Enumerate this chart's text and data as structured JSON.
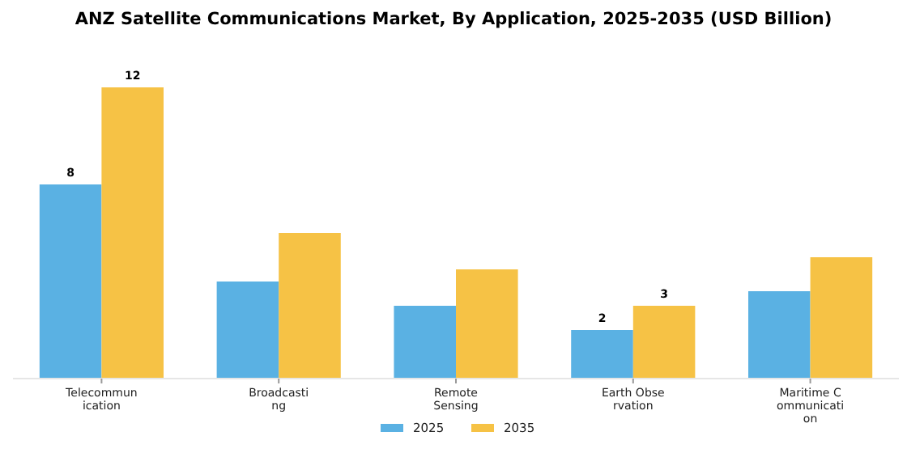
{
  "chart_data": {
    "type": "bar",
    "title": "ANZ Satellite Communications Market, By Application, 2025-2035 (USD Billion)",
    "categories": [
      "Telecommunication",
      "Broadcasting",
      "Remote Sensing",
      "Earth Observation",
      "Maritime Communication"
    ],
    "series": [
      {
        "name": "2025",
        "color": "#5ab1e3",
        "values": [
          8,
          4,
          3,
          2,
          3.6
        ],
        "value_labels": [
          "8",
          null,
          null,
          "2",
          null
        ]
      },
      {
        "name": "2035",
        "color": "#f6c245",
        "values": [
          12,
          6,
          4.5,
          3,
          5
        ],
        "value_labels": [
          "12",
          null,
          null,
          "3",
          null
        ]
      }
    ],
    "tick_labels": "x",
    "legend": "bottom"
  }
}
